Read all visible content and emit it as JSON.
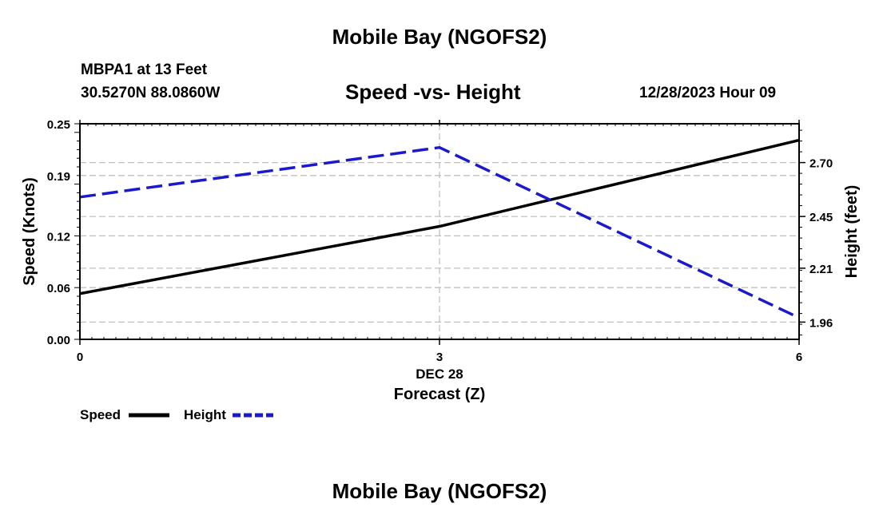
{
  "header": {
    "title": "Mobile Bay (NGOFS2)",
    "station": "MBPA1 at 13 Feet",
    "coords": "30.5270N  88.0860W",
    "chart_title": "Speed -vs- Height",
    "datetime": "12/28/2023 Hour 09"
  },
  "footer": {
    "title": "Mobile Bay (NGOFS2)"
  },
  "colors": {
    "speed": "#000000",
    "height": "#1a1acc",
    "grid": "#c0c0c0"
  },
  "chart_data": {
    "type": "line",
    "title": "Speed -vs- Height",
    "xlabel": "Forecast (Z)",
    "xlabel_date": "DEC 28",
    "x_ticks": [
      0,
      3,
      6
    ],
    "x_tick_labels": [
      "0",
      "3",
      "6"
    ],
    "xlim": [
      0,
      6
    ],
    "y_left": {
      "label": "Speed (Knots)",
      "lim": [
        0.0,
        0.25
      ],
      "ticks": [
        0.0,
        0.06,
        0.12,
        0.19,
        0.25
      ],
      "tick_labels": [
        "0.00",
        "0.06",
        "0.12",
        "0.19",
        "0.25"
      ]
    },
    "y_right": {
      "label": "Height (feet)",
      "lim": [
        1.88,
        2.88
      ],
      "ticks": [
        1.96,
        2.21,
        2.45,
        2.7
      ],
      "tick_labels": [
        "1.96",
        "2.21",
        "2.45",
        "2.70"
      ]
    },
    "series": [
      {
        "name": "Speed",
        "axis": "left",
        "style": "solid",
        "x": [
          0,
          3,
          6
        ],
        "values": [
          0.053,
          0.131,
          0.231
        ]
      },
      {
        "name": "Height",
        "axis": "right",
        "style": "dashed",
        "x": [
          0,
          3,
          6
        ],
        "values": [
          2.54,
          2.77,
          1.98
        ]
      }
    ],
    "grid": true,
    "legend": [
      {
        "label": "Speed",
        "style": "solid"
      },
      {
        "label": "Height",
        "style": "dashed"
      }
    ]
  }
}
